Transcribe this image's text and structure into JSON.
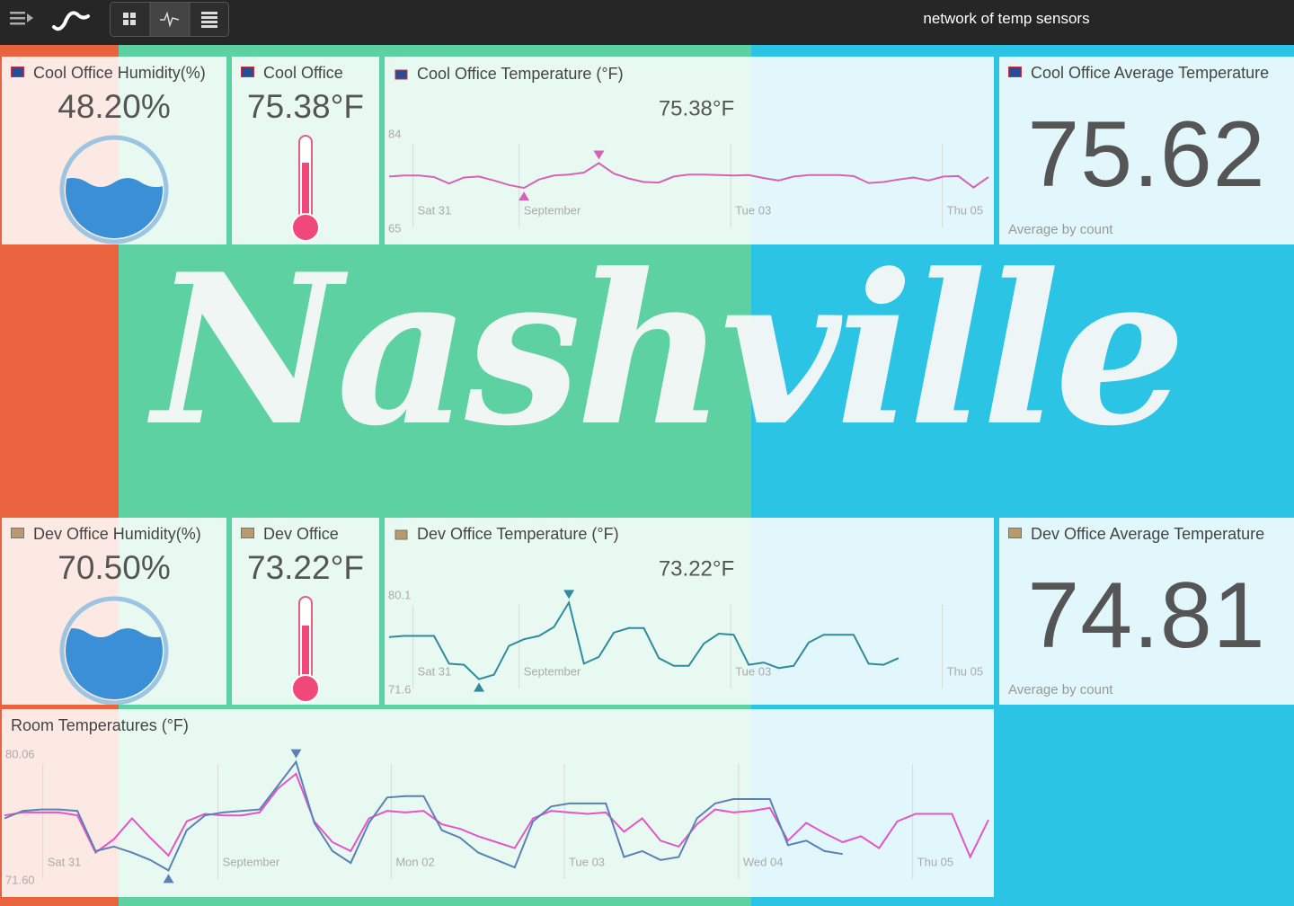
{
  "header": {
    "title": "network of temp sensors"
  },
  "background": {
    "text": "Nashville"
  },
  "tiles": {
    "cool_humidity": {
      "title": "Cool Office Humidity(%)",
      "value": "48.20%"
    },
    "cool_temp": {
      "title": "Cool Office",
      "value": "75.38°F"
    },
    "cool_chart": {
      "type": "line",
      "title": "Cool Office Temperature (°F)",
      "current": "75.38°F",
      "ylim": [
        65,
        84
      ],
      "yticks": [
        65,
        84
      ],
      "xticks": [
        "Sat 31",
        "September",
        "Tue 03",
        "Thu 05"
      ],
      "series": [
        {
          "color": "#d763b8",
          "values": [
            75.6,
            75.8,
            75.8,
            75.5,
            74.2,
            75.4,
            75.6,
            74.8,
            73.9,
            73.3,
            75.0,
            75.8,
            76.0,
            76.4,
            78.3,
            76.2,
            75.2,
            74.5,
            74.4,
            75.6,
            76.0,
            76.0,
            75.9,
            75.8,
            75.9,
            75.3,
            74.8,
            75.6,
            75.9,
            75.9,
            75.9,
            75.7,
            74.3,
            74.5,
            75.0,
            75.4,
            74.8,
            75.6,
            75.7,
            73.4,
            75.5
          ]
        }
      ]
    },
    "cool_avg": {
      "title": "Cool Office Average Temperature",
      "value": "75.62",
      "subtitle": "Average by count"
    },
    "dev_humidity": {
      "title": "Dev Office Humidity(%)",
      "value": "70.50%"
    },
    "dev_temp": {
      "title": "Dev Office",
      "value": "73.22°F"
    },
    "dev_chart": {
      "type": "line",
      "title": "Dev Office Temperature (°F)",
      "current": "73.22°F",
      "ylim": [
        71.6,
        80.1
      ],
      "yticks": [
        71.6,
        80.1
      ],
      "xticks": [
        "Sat 31",
        "September",
        "Tue 03",
        "Thu 05"
      ],
      "series": [
        {
          "color": "#2f8c9c",
          "values": [
            76.4,
            76.5,
            76.5,
            76.5,
            74.0,
            73.9,
            72.6,
            73.0,
            75.6,
            76.2,
            76.5,
            77.3,
            79.5,
            74.0,
            74.6,
            76.8,
            77.2,
            77.2,
            74.5,
            73.8,
            73.8,
            75.8,
            76.7,
            76.6,
            73.9,
            74.1,
            73.6,
            73.8,
            75.9,
            76.6,
            76.6,
            76.6,
            74.0,
            73.9,
            74.5,
            null,
            null,
            null,
            null,
            null,
            null
          ]
        }
      ]
    },
    "dev_avg": {
      "title": "Dev Office Average Temperature",
      "value": "74.81",
      "subtitle": "Average by count"
    },
    "room_chart": {
      "type": "line",
      "title": "Room Temperatures (°F)",
      "ylim": [
        71.6,
        80.06
      ],
      "yticks": [
        {
          "value": 71.6,
          "label": "71.60"
        },
        80.06
      ],
      "xticks": [
        "Sat 31",
        "September",
        "Mon 02",
        "Tue 03",
        "Wed 04",
        "Thu 05"
      ],
      "series": [
        {
          "color": "#e455c8",
          "values": [
            76.0,
            76.2,
            76.2,
            76.2,
            76.0,
            73.5,
            74.4,
            75.8,
            74.5,
            73.3,
            75.6,
            76.1,
            76.0,
            76.0,
            76.2,
            77.8,
            78.8,
            75.6,
            74.2,
            73.6,
            75.8,
            76.3,
            76.2,
            76.3,
            75.4,
            75.1,
            74.6,
            74.2,
            73.8,
            75.8,
            76.3,
            76.2,
            76.1,
            76.2,
            74.9,
            75.8,
            74.3,
            73.9,
            75.4,
            76.4,
            76.2,
            76.3,
            76.5,
            74.3,
            75.5,
            74.8,
            74.2,
            74.6,
            73.8,
            75.6,
            76.1,
            76.1,
            76.1,
            73.2,
            75.7
          ]
        },
        {
          "color": "#5a82b4",
          "values": [
            75.8,
            76.3,
            76.4,
            76.4,
            76.3,
            73.6,
            73.9,
            73.5,
            73.0,
            72.3,
            75.0,
            76.0,
            76.2,
            76.3,
            76.4,
            78.0,
            79.6,
            75.5,
            73.6,
            72.8,
            75.5,
            77.2,
            77.3,
            77.3,
            75.0,
            74.5,
            73.5,
            73.0,
            72.5,
            75.6,
            76.6,
            76.8,
            76.8,
            76.8,
            73.2,
            73.6,
            73.0,
            73.2,
            75.8,
            76.8,
            77.1,
            77.1,
            77.1,
            74.0,
            74.3,
            73.6,
            73.4,
            null,
            null,
            null,
            null,
            null,
            null,
            null,
            null
          ]
        }
      ]
    }
  }
}
